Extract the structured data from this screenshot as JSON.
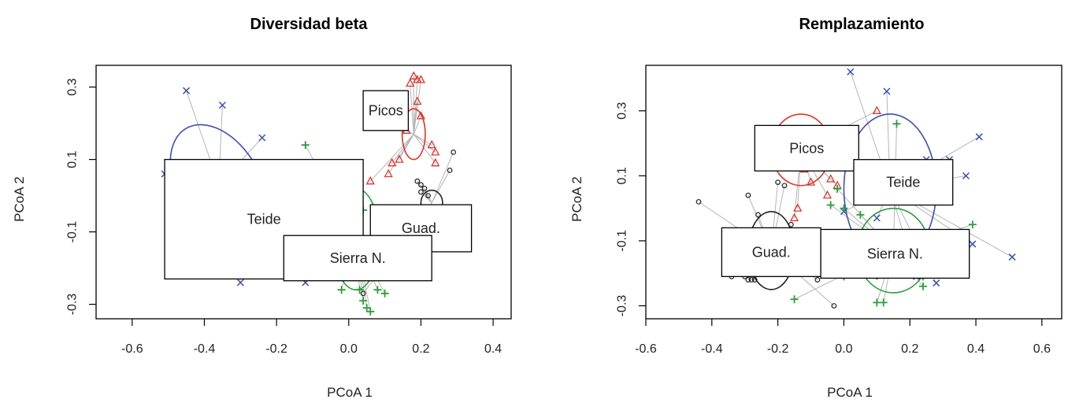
{
  "chart_data": [
    {
      "type": "scatter",
      "title": "Diversidad beta",
      "xlabel": "PCoA 1",
      "ylabel": "PCoA 2",
      "xlim": [
        -0.7,
        0.45
      ],
      "ylim": [
        -0.34,
        0.36
      ],
      "xticks": [
        -0.6,
        -0.4,
        -0.2,
        0.0,
        0.2,
        0.4
      ],
      "xtick_labels": [
        "-0.6",
        "-0.4",
        "-0.2",
        "0.0",
        "0.2",
        "0.4"
      ],
      "yticks": [
        -0.3,
        -0.1,
        0.1,
        0.3
      ],
      "ytick_labels": [
        "-0.3",
        "-0.1",
        "0.1",
        "0.3"
      ],
      "groups": [
        {
          "label": "Teide",
          "color": "#3b4fb8",
          "marker": "x",
          "centroid": [
            -0.36,
            0.03
          ],
          "ellipse": {
            "rx": 0.115,
            "ry": 0.18,
            "angle": -30
          },
          "label_box": [
            -0.51,
            -0.23,
            0.04,
            0.1
          ],
          "points": [
            [
              -0.45,
              0.29
            ],
            [
              -0.35,
              0.25
            ],
            [
              -0.24,
              0.16
            ],
            [
              -0.51,
              0.06
            ],
            [
              -0.16,
              0.0
            ],
            [
              -0.22,
              -0.02
            ],
            [
              -0.46,
              -0.14
            ],
            [
              -0.41,
              -0.16
            ],
            [
              -0.3,
              -0.24
            ],
            [
              -0.12,
              -0.24
            ]
          ]
        },
        {
          "label": "Picos",
          "color": "#e0342a",
          "marker": "triangle",
          "centroid": [
            0.18,
            0.17
          ],
          "ellipse": {
            "rx": 0.032,
            "ry": 0.07,
            "angle": 0
          },
          "label_box": [
            0.04,
            0.18,
            0.165,
            0.29
          ],
          "points": [
            [
              0.18,
              0.33
            ],
            [
              0.19,
              0.32
            ],
            [
              0.2,
              0.32
            ],
            [
              0.17,
              0.31
            ],
            [
              0.19,
              0.26
            ],
            [
              0.2,
              0.22
            ],
            [
              0.16,
              0.18
            ],
            [
              0.23,
              0.14
            ],
            [
              0.24,
              0.12
            ],
            [
              0.14,
              0.1
            ],
            [
              0.12,
              0.09
            ],
            [
              0.24,
              0.09
            ],
            [
              0.11,
              0.06
            ],
            [
              0.06,
              0.04
            ]
          ]
        },
        {
          "label": "Guad.",
          "color": "#222222",
          "marker": "circle",
          "centroid": [
            0.23,
            -0.02
          ],
          "ellipse": {
            "rx": 0.03,
            "ry": 0.035,
            "angle": 0
          },
          "label_box": [
            0.06,
            -0.155,
            0.34,
            -0.025
          ],
          "points": [
            [
              0.29,
              0.12
            ],
            [
              0.28,
              0.07
            ],
            [
              0.19,
              0.04
            ],
            [
              0.2,
              0.03
            ],
            [
              0.21,
              0.02
            ],
            [
              0.2,
              0.01
            ],
            [
              0.22,
              0.0
            ],
            [
              0.04,
              -0.27
            ]
          ]
        },
        {
          "label": "Sierra N.",
          "color": "#2a9e3a",
          "marker": "plus",
          "centroid": [
            0.02,
            -0.12
          ],
          "ellipse": {
            "rx": 0.065,
            "ry": 0.14,
            "angle": 0
          },
          "label_box": [
            -0.18,
            -0.235,
            0.23,
            -0.11
          ],
          "points": [
            [
              -0.12,
              0.14
            ],
            [
              -0.08,
              0.04
            ],
            [
              -0.04,
              -0.06
            ],
            [
              -0.02,
              -0.07
            ],
            [
              0.04,
              -0.04
            ],
            [
              -0.24,
              -0.19
            ],
            [
              -0.02,
              -0.26
            ],
            [
              0.03,
              -0.26
            ],
            [
              0.04,
              -0.29
            ],
            [
              0.05,
              -0.31
            ],
            [
              0.06,
              -0.32
            ],
            [
              0.08,
              -0.26
            ],
            [
              0.1,
              -0.27
            ]
          ]
        }
      ]
    },
    {
      "type": "scatter",
      "title": "Remplazamiento",
      "xlabel": "PCoA 1",
      "ylabel": "PCoA 2",
      "xlim": [
        -0.6,
        0.66
      ],
      "ylim": [
        -0.34,
        0.44
      ],
      "xticks": [
        -0.6,
        -0.4,
        -0.2,
        0.0,
        0.2,
        0.4,
        0.6
      ],
      "xtick_labels": [
        "-0.6",
        "-0.4",
        "-0.2",
        "0.0",
        "0.2",
        "0.4",
        "0.6"
      ],
      "yticks": [
        -0.3,
        -0.1,
        0.1,
        0.3
      ],
      "ytick_labels": [
        "-0.3",
        "-0.1",
        "0.1",
        "0.3"
      ],
      "groups": [
        {
          "label": "Picos",
          "color": "#e0342a",
          "marker": "triangle",
          "centroid": [
            -0.13,
            0.18
          ],
          "ellipse": {
            "rx": 0.09,
            "ry": 0.11,
            "angle": 0
          },
          "label_box": [
            -0.27,
            0.115,
            0.045,
            0.255
          ],
          "points": [
            [
              0.1,
              0.3
            ],
            [
              -0.06,
              0.2
            ],
            [
              -0.12,
              0.12
            ],
            [
              -0.04,
              0.09
            ],
            [
              -0.02,
              0.07
            ],
            [
              -0.1,
              0.08
            ],
            [
              -0.05,
              0.04
            ],
            [
              -0.14,
              0.0
            ],
            [
              -0.15,
              -0.03
            ]
          ]
        },
        {
          "label": "Teide",
          "color": "#3b4fb8",
          "marker": "x",
          "centroid": [
            0.14,
            0.06
          ],
          "ellipse": {
            "rx": 0.14,
            "ry": 0.23,
            "angle": 0
          },
          "label_box": [
            0.03,
            0.01,
            0.33,
            0.15
          ],
          "points": [
            [
              0.02,
              0.42
            ],
            [
              0.13,
              0.36
            ],
            [
              0.41,
              0.22
            ],
            [
              0.25,
              0.15
            ],
            [
              0.32,
              0.15
            ],
            [
              0.37,
              0.1
            ],
            [
              0.21,
              0.13
            ],
            [
              0.51,
              -0.15
            ],
            [
              0.39,
              -0.11
            ],
            [
              0.28,
              -0.23
            ],
            [
              0.22,
              -0.21
            ],
            [
              0.0,
              -0.01
            ],
            [
              0.1,
              -0.03
            ]
          ]
        },
        {
          "label": "Guad.",
          "color": "#222222",
          "marker": "circle",
          "centroid": [
            -0.22,
            -0.13
          ],
          "ellipse": {
            "rx": 0.07,
            "ry": 0.12,
            "angle": 0
          },
          "label_box": [
            -0.37,
            -0.21,
            -0.07,
            -0.06
          ],
          "points": [
            [
              -0.44,
              0.02
            ],
            [
              -0.29,
              0.04
            ],
            [
              -0.2,
              0.08
            ],
            [
              -0.18,
              0.07
            ],
            [
              -0.26,
              -0.02
            ],
            [
              -0.16,
              -0.05
            ],
            [
              -0.34,
              -0.21
            ],
            [
              -0.3,
              -0.21
            ],
            [
              -0.29,
              -0.22
            ],
            [
              -0.28,
              -0.22
            ],
            [
              -0.27,
              -0.22
            ],
            [
              -0.08,
              -0.22
            ],
            [
              -0.03,
              -0.3
            ],
            [
              0.1,
              -0.21
            ]
          ]
        },
        {
          "label": "Sierra N.",
          "color": "#2a9e3a",
          "marker": "plus",
          "centroid": [
            0.15,
            -0.13
          ],
          "ellipse": {
            "rx": 0.11,
            "ry": 0.13,
            "angle": 0
          },
          "label_box": [
            -0.07,
            -0.215,
            0.38,
            -0.065
          ],
          "points": [
            [
              0.16,
              0.26
            ],
            [
              -0.02,
              0.06
            ],
            [
              -0.04,
              0.01
            ],
            [
              0.0,
              0.0
            ],
            [
              0.05,
              -0.02
            ],
            [
              0.39,
              -0.05
            ],
            [
              0.24,
              -0.24
            ],
            [
              0.24,
              -0.21
            ],
            [
              0.22,
              -0.2
            ],
            [
              0.1,
              -0.29
            ],
            [
              0.12,
              -0.29
            ],
            [
              -0.15,
              -0.28
            ],
            [
              0.0,
              -0.21
            ]
          ]
        }
      ]
    }
  ]
}
